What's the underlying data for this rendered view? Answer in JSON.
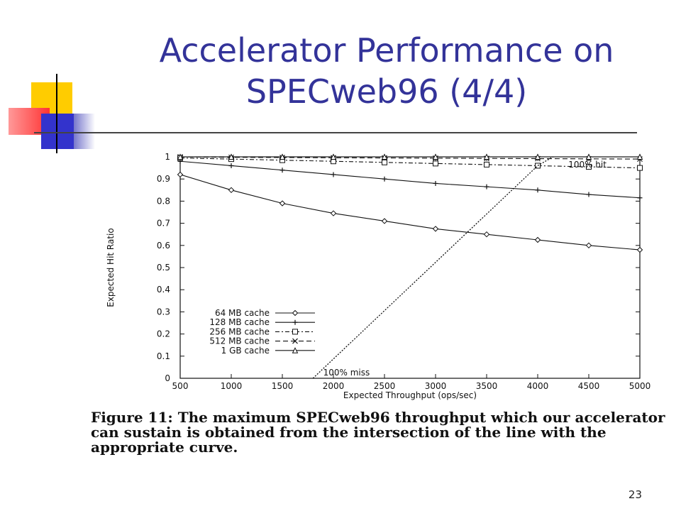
{
  "slide": {
    "title_line1": "Accelerator Performance on",
    "title_line2": "SPECweb96 (4/4)",
    "caption": "Figure 11: The maximum SPECweb96 throughput which our accelerator can sustain is obtained from the intersection of the line with the appropriate curve.",
    "page_number": "23"
  },
  "colors": {
    "title": "#333399",
    "deco_yellow": "#ffcc00",
    "deco_blue": "#3333cc",
    "deco_red": "#ff3333"
  },
  "chart_data": {
    "type": "line",
    "xlabel": "Expected Throughput (ops/sec)",
    "ylabel": "Expected Hit Ratio",
    "xlim": [
      500,
      5000
    ],
    "ylim": [
      0,
      1
    ],
    "x_ticks": [
      500,
      1000,
      1500,
      2000,
      2500,
      3000,
      3500,
      4000,
      4500,
      5000
    ],
    "y_ticks": [
      0,
      0.1,
      0.2,
      0.3,
      0.4,
      0.5,
      0.6,
      0.7,
      0.8,
      0.9,
      1
    ],
    "grid": false,
    "legend_placement": "bottom-left",
    "x": [
      500,
      1000,
      1500,
      2000,
      2500,
      3000,
      3500,
      4000,
      4500,
      5000
    ],
    "series": [
      {
        "name": "64 MB cache",
        "marker": "diamond",
        "dash": "",
        "values": [
          0.92,
          0.85,
          0.79,
          0.745,
          0.71,
          0.675,
          0.65,
          0.625,
          0.6,
          0.58
        ]
      },
      {
        "name": "128 MB cache",
        "marker": "plus",
        "dash": "",
        "values": [
          0.98,
          0.96,
          0.94,
          0.92,
          0.9,
          0.88,
          0.865,
          0.85,
          0.83,
          0.815
        ]
      },
      {
        "name": "256 MB cache",
        "marker": "square",
        "dash": "6,3,2,3",
        "values": [
          0.995,
          0.99,
          0.985,
          0.98,
          0.975,
          0.97,
          0.965,
          0.96,
          0.955,
          0.95
        ]
      },
      {
        "name": "512 MB cache",
        "marker": "cross",
        "dash": "7,4",
        "values": [
          1,
          0.998,
          0.997,
          0.996,
          0.995,
          0.994,
          0.993,
          0.992,
          0.991,
          0.99
        ]
      },
      {
        "name": "1 GB cache",
        "marker": "triangle",
        "dash": "",
        "values": [
          1,
          1,
          1,
          1,
          1,
          1,
          1,
          1,
          1,
          1
        ]
      }
    ],
    "reference_line": {
      "points": [
        [
          1800,
          0
        ],
        [
          4000,
          0.96
        ],
        [
          4150,
          1
        ]
      ],
      "dash": "2,2"
    },
    "annotations": [
      {
        "text": "100% hit",
        "x": 4300,
        "y": 0.965
      },
      {
        "text": "100% miss",
        "x": 1900,
        "y": 0.025
      }
    ]
  }
}
